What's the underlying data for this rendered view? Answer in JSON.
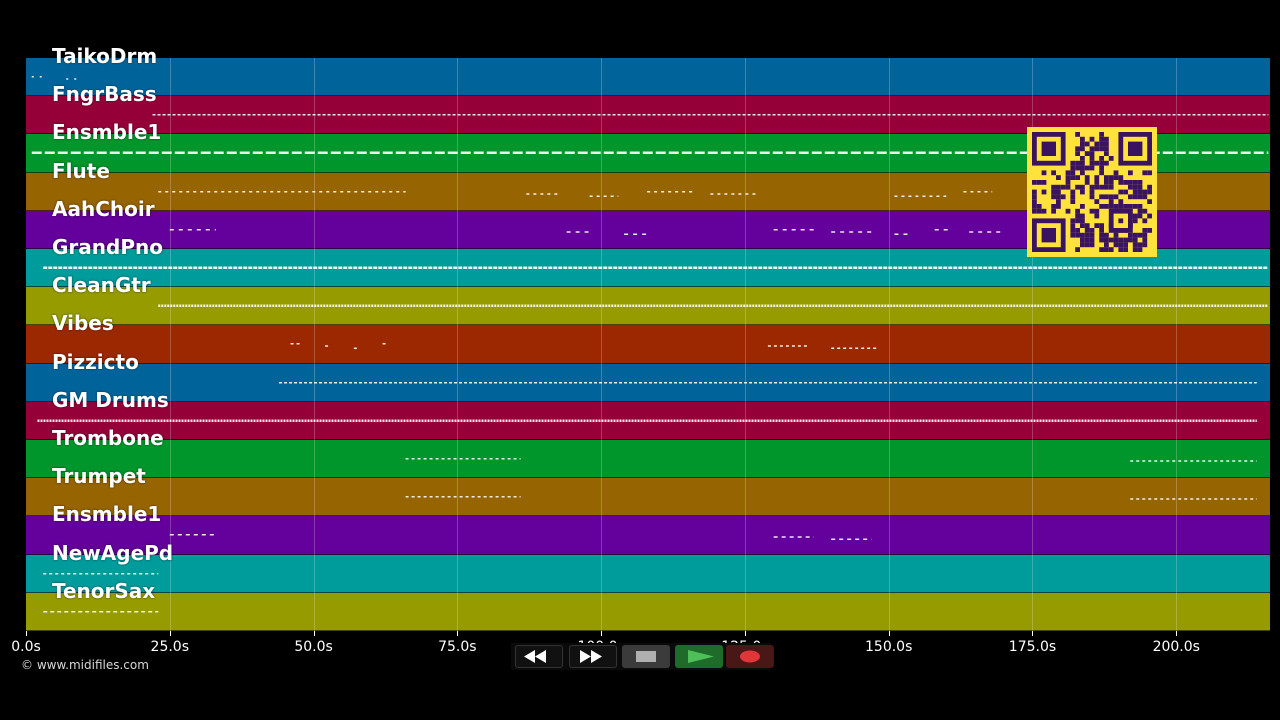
{
  "tracks": [
    {
      "name": "TaikoDrm",
      "color": "#00649b"
    },
    {
      "name": "FngrBass",
      "color": "#960039"
    },
    {
      "name": "Ensmble1",
      "color": "#00962b"
    },
    {
      "name": "Flute",
      "color": "#966400"
    },
    {
      "name": "AahChoir",
      "color": "#64009b"
    },
    {
      "name": "GrandPno",
      "color": "#009b9b"
    },
    {
      "name": "CleanGtr",
      "color": "#969b00"
    },
    {
      "name": "Vibes",
      "color": "#9b2800"
    },
    {
      "name": "Pizzicto",
      "color": "#00649b"
    },
    {
      "name": "GM Drums",
      "color": "#960039"
    },
    {
      "name": "Trombone",
      "color": "#00962b"
    },
    {
      "name": "Trumpet",
      "color": "#966400"
    },
    {
      "name": "Ensmble1",
      "color": "#64009b"
    },
    {
      "name": "NewAgePd",
      "color": "#009b9b"
    },
    {
      "name": "TenorSax",
      "color": "#969b00"
    }
  ],
  "time_axis": {
    "unit": "s",
    "max_seconds": 216.3,
    "ticks": [
      {
        "value": 0,
        "label": "0.0s"
      },
      {
        "value": 25,
        "label": "25.0s"
      },
      {
        "value": 50,
        "label": "50.0s"
      },
      {
        "value": 75,
        "label": "75.0s"
      },
      {
        "value": 100,
        "label": "100.0s"
      },
      {
        "value": 125,
        "label": "125.0s"
      },
      {
        "value": 150,
        "label": "150.0s"
      },
      {
        "value": 175,
        "label": "175.0s"
      },
      {
        "value": 200,
        "label": "200.0s"
      }
    ]
  },
  "copyright": "© www.midifiles.com",
  "transport": {
    "buttons": [
      {
        "name": "rewind-button",
        "icon": "rewind-icon"
      },
      {
        "name": "fast-forward-button",
        "icon": "fast-forward-icon"
      },
      {
        "name": "stop-button",
        "icon": "stop-icon"
      },
      {
        "name": "play-button",
        "icon": "play-icon"
      },
      {
        "name": "record-button",
        "icon": "record-icon"
      }
    ],
    "colors": {
      "play": "#4fbf5a",
      "stop": "#b0b0b0",
      "record": "#e0363a"
    }
  },
  "qr_code": {
    "icon": "qr-code-icon",
    "color": "#ffe23b"
  },
  "note_color": "#ffffff"
}
